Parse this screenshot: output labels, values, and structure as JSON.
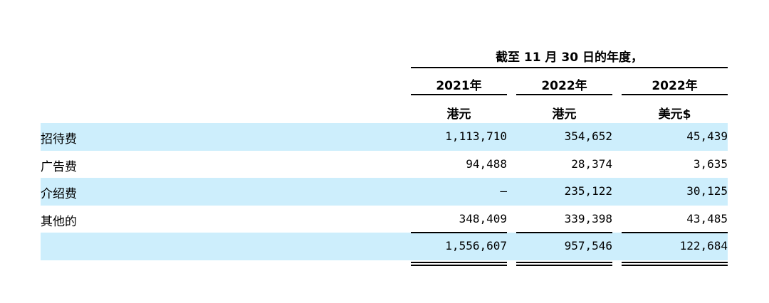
{
  "header": {
    "period": "截至 11 月 30 日的年度，"
  },
  "columns": [
    {
      "year": "2021年",
      "currency": "港元"
    },
    {
      "year": "2022年",
      "currency": "港元"
    },
    {
      "year": "2022年",
      "currency": "美元$"
    }
  ],
  "rows": [
    {
      "label": "招待费",
      "values": [
        "1,113,710",
        "354,652",
        "45,439"
      ]
    },
    {
      "label": "广告费",
      "values": [
        "94,488",
        "28,374",
        "3,635"
      ]
    },
    {
      "label": "介绍费",
      "values": [
        "—",
        "235,122",
        "30,125"
      ]
    },
    {
      "label": "其他的",
      "values": [
        "348,409",
        "339,398",
        "43,485"
      ]
    }
  ],
  "total": {
    "values": [
      "1,556,607",
      "957,546",
      "122,684"
    ]
  }
}
